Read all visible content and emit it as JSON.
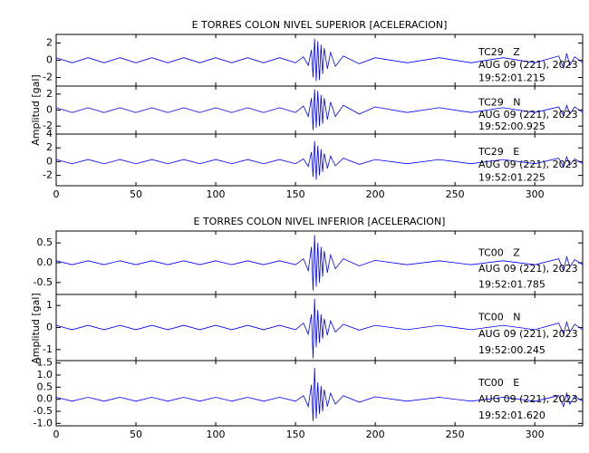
{
  "chart_data": [
    {
      "type": "line",
      "title": "E TORRES COLON NIVEL SUPERIOR [ACELERACION]",
      "y_label": "Amplitud [gal]",
      "color": "#0000ff",
      "xlim": [
        0,
        330
      ],
      "xticks": [
        0,
        50,
        100,
        150,
        200,
        250,
        300
      ],
      "x": [
        0,
        10,
        20,
        30,
        40,
        50,
        60,
        70,
        80,
        90,
        100,
        110,
        120,
        130,
        140,
        150,
        155,
        158,
        160,
        161,
        162,
        163,
        164,
        165,
        166,
        167,
        168,
        170,
        172,
        175,
        180,
        190,
        200,
        220,
        240,
        260,
        280,
        300,
        315,
        318,
        320,
        322,
        325,
        330
      ],
      "series": [
        {
          "name": "TC29   Z",
          "date": "AUG 09 (221), 2023",
          "time": "19:52:01.215",
          "ylim": [
            -3,
            3
          ],
          "yticks": [
            -2,
            0,
            2
          ],
          "values": [
            0.3,
            -0.3,
            0.3,
            -0.3,
            0.3,
            -0.3,
            0.3,
            -0.3,
            0.3,
            -0.3,
            0.3,
            -0.3,
            0.3,
            -0.3,
            0.3,
            -0.3,
            0.4,
            -0.6,
            1.2,
            -2.0,
            2.5,
            -2.4,
            2.2,
            -2.3,
            1.8,
            -1.6,
            1.4,
            -1.0,
            0.9,
            -0.7,
            0.5,
            -0.4,
            0.3,
            -0.3,
            0.3,
            -0.3,
            0.3,
            -0.3,
            0.5,
            -0.9,
            0.8,
            -0.6,
            0.4,
            -0.3
          ]
        },
        {
          "name": "TC29   N",
          "date": "AUG 09 (221), 2023",
          "time": "19:52:00.925",
          "ylim": [
            -3,
            3
          ],
          "yticks": [
            -2,
            0,
            2
          ],
          "values": [
            0.3,
            -0.3,
            0.3,
            -0.3,
            0.3,
            -0.3,
            0.3,
            -0.3,
            0.3,
            -0.3,
            0.3,
            -0.3,
            0.3,
            -0.3,
            0.3,
            -0.3,
            0.5,
            -0.8,
            1.5,
            -2.5,
            2.6,
            -2.2,
            2.4,
            -2.0,
            1.9,
            -1.7,
            1.5,
            -1.2,
            1.0,
            -0.8,
            0.6,
            -0.5,
            0.4,
            -0.3,
            0.3,
            -0.3,
            0.3,
            -0.3,
            0.4,
            -0.7,
            0.6,
            -0.5,
            0.4,
            -0.3
          ]
        },
        {
          "name": "TC29   E",
          "date": "AUG 09 (221), 2023",
          "time": "19:52:01.225",
          "ylim": [
            -3.5,
            4
          ],
          "yticks": [
            -2,
            0,
            2,
            4
          ],
          "values": [
            0.3,
            -0.3,
            0.3,
            -0.3,
            0.3,
            -0.3,
            0.3,
            -0.3,
            0.3,
            -0.3,
            0.3,
            -0.3,
            0.3,
            -0.3,
            0.3,
            -0.3,
            0.4,
            -0.7,
            1.4,
            -2.2,
            3.0,
            -2.6,
            2.3,
            -2.0,
            1.8,
            -1.5,
            1.2,
            -1.0,
            0.8,
            -0.6,
            0.5,
            -0.4,
            0.3,
            -0.3,
            0.3,
            -0.3,
            0.3,
            -0.3,
            0.5,
            -0.8,
            0.7,
            -0.5,
            0.4,
            -0.3
          ]
        }
      ]
    },
    {
      "type": "line",
      "title": "E TORRES COLON NIVEL INFERIOR [ACELERACION]",
      "y_label": "Amplitud [gal]",
      "color": "#0000ff",
      "xlim": [
        0,
        330
      ],
      "xticks": [
        0,
        50,
        100,
        150,
        200,
        250,
        300
      ],
      "x": [
        0,
        10,
        20,
        30,
        40,
        50,
        60,
        70,
        80,
        90,
        100,
        110,
        120,
        130,
        140,
        150,
        155,
        158,
        160,
        161,
        162,
        163,
        164,
        165,
        166,
        167,
        168,
        170,
        172,
        175,
        180,
        190,
        200,
        220,
        240,
        260,
        280,
        300,
        315,
        318,
        320,
        322,
        325,
        330
      ],
      "series": [
        {
          "name": "TC00   Z",
          "date": "AUG 09 (221), 2023",
          "time": "19:52:01.785",
          "ylim": [
            -0.8,
            0.8
          ],
          "yticks": [
            -0.5,
            {
              "value": 0,
              "label": "0.0"
            },
            0.5
          ],
          "values": [
            0.05,
            -0.05,
            0.05,
            -0.05,
            0.05,
            -0.05,
            0.05,
            -0.05,
            0.05,
            -0.05,
            0.05,
            -0.05,
            0.05,
            -0.05,
            0.05,
            -0.05,
            0.1,
            -0.2,
            0.4,
            -0.7,
            0.7,
            -0.6,
            0.5,
            -0.5,
            0.4,
            -0.35,
            0.3,
            -0.25,
            0.2,
            -0.15,
            0.1,
            -0.08,
            0.06,
            -0.05,
            0.05,
            -0.05,
            0.05,
            -0.05,
            0.1,
            -0.2,
            0.15,
            -0.1,
            0.08,
            -0.05
          ]
        },
        {
          "name": "TC00   N",
          "date": "AUG 09 (221), 2023",
          "time": "19:52:00.245",
          "ylim": [
            -1.5,
            1.5
          ],
          "yticks": [
            -1,
            0,
            1
          ],
          "values": [
            0.1,
            -0.1,
            0.1,
            -0.1,
            0.1,
            -0.1,
            0.1,
            -0.1,
            0.1,
            -0.1,
            0.1,
            -0.1,
            0.1,
            -0.1,
            0.1,
            -0.1,
            0.2,
            -0.3,
            0.6,
            -1.4,
            1.3,
            -0.9,
            0.8,
            -0.7,
            0.6,
            -0.5,
            0.4,
            -0.35,
            0.3,
            -0.2,
            0.15,
            -0.12,
            0.1,
            -0.1,
            0.1,
            -0.1,
            0.1,
            -0.1,
            0.2,
            -0.3,
            0.25,
            -0.2,
            0.15,
            -0.1
          ]
        },
        {
          "name": "TC00   E",
          "date": "AUG 09 (221), 2023",
          "time": "19:52:01.620",
          "ylim": [
            -1.1,
            1.6
          ],
          "yticks": [
            {
              "value": -1,
              "label": "-1.0"
            },
            -0.5,
            {
              "value": 0,
              "label": "0.0"
            },
            0.5,
            {
              "value": 1,
              "label": "1.0"
            },
            1.5
          ],
          "values": [
            0.08,
            -0.08,
            0.08,
            -0.08,
            0.08,
            -0.08,
            0.08,
            -0.08,
            0.08,
            -0.08,
            0.08,
            -0.08,
            0.08,
            -0.08,
            0.08,
            -0.08,
            0.15,
            -0.3,
            0.6,
            -0.9,
            1.3,
            -0.8,
            0.7,
            -0.6,
            0.55,
            -0.5,
            0.4,
            -0.3,
            0.25,
            -0.2,
            0.15,
            -0.12,
            0.1,
            -0.08,
            0.08,
            -0.08,
            0.08,
            -0.08,
            0.15,
            -0.3,
            0.25,
            -0.2,
            0.12,
            -0.08
          ]
        }
      ]
    }
  ]
}
